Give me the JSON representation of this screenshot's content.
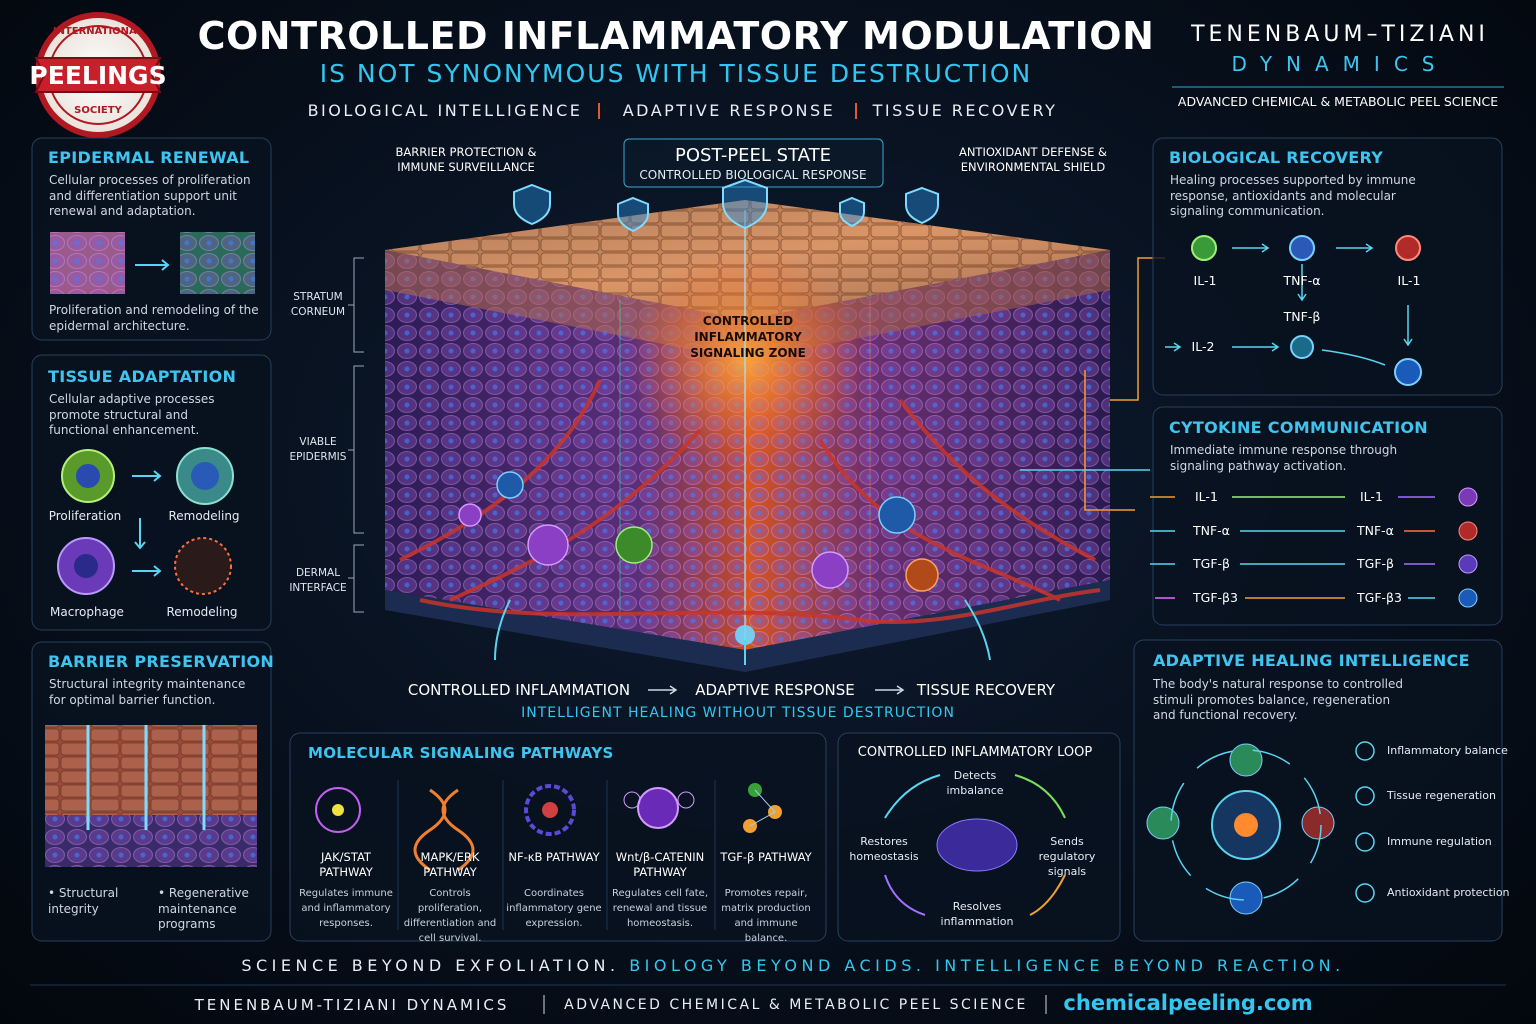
{
  "header": {
    "logo": {
      "top": "INTERNATIONAL",
      "main": "PEELINGS",
      "bottom": "SOCIETY"
    },
    "title": "CONTROLLED INFLAMMATORY MODULATION",
    "subtitle": "IS NOT SYNONYMOUS WITH TISSUE DESTRUCTION",
    "tagline": [
      "BIOLOGICAL INTELLIGENCE",
      "ADAPTIVE RESPONSE",
      "TISSUE RECOVERY"
    ],
    "brand": {
      "name": "TENENBAUM–TIZIANI",
      "sub": "DYNAMICS",
      "tagline": "ADVANCED CHEMICAL & METABOLIC PEEL SCIENCE"
    }
  },
  "left": {
    "epidermal_renewal": {
      "title": "EPIDERMAL RENEWAL",
      "text": "Cellular processes of proliferation and differentiation support unit renewal and adaptation.",
      "caption": "Proliferation and remodeling of the epidermal architecture."
    },
    "tissue_adaptation": {
      "title": "TISSUE ADAPTATION",
      "text": "Cellular adaptive processes promote structural and functional enhancement.",
      "labels": [
        "Proliferation",
        "Remodeling",
        "Macrophage",
        "Remodeling"
      ]
    },
    "barrier_preservation": {
      "title": "BARRIER PRESERVATION",
      "text": "Structural integrity maintenance for optimal barrier function.",
      "bullets": [
        "Structural integrity",
        "Regenerative maintenance programs"
      ]
    }
  },
  "center": {
    "top_left": "BARRIER PROTECTION & IMMUNE SURVEILLANCE",
    "state_title": "POST-PEEL STATE",
    "state_sub": "CONTROLLED BIOLOGICAL RESPONSE",
    "top_right": "ANTIOXIDANT DEFENSE & ENVIRONMENTAL SHIELD",
    "layers": [
      "STRATUM CORNEUM",
      "VIABLE EPIDERMIS",
      "DERMAL INTERFACE"
    ],
    "zone": "CONTROLLED INFLAMMATORY SIGNALING ZONE",
    "flow": [
      "CONTROLLED INFLAMMATION",
      "ADAPTIVE RESPONSE",
      "TISSUE RECOVERY"
    ],
    "flow_caption": "INTELLIGENT HEALING WITHOUT TISSUE DESTRUCTION"
  },
  "right": {
    "biological_recovery": {
      "title": "BIOLOGICAL RECOVERY",
      "text": "Healing processes supported by immune response, antioxidants and molecular signaling communication.",
      "nodes": [
        "IL-1",
        "TNF-α",
        "IL-1",
        "TNF-β",
        "IL-2"
      ]
    },
    "cytokine_communication": {
      "title": "CYTOKINE COMMUNICATION",
      "text": "Immediate immune response through signaling pathway activation.",
      "rows": [
        [
          "IL-1",
          "IL-1"
        ],
        [
          "TNF-α",
          "TNF-α"
        ],
        [
          "TGF-β",
          "TGF-β"
        ],
        [
          "TGF-β3",
          "TGF-β3"
        ]
      ]
    },
    "adaptive_healing": {
      "title": "ADAPTIVE HEALING INTELLIGENCE",
      "text": "The body's natural response to controlled stimuli promotes balance, regeneration and functional recovery.",
      "items": [
        "Inflammatory balance",
        "Tissue regeneration",
        "Immune regulation",
        "Antioxidant protection"
      ]
    }
  },
  "bottom": {
    "pathways": {
      "title": "MOLECULAR SIGNALING PATHWAYS",
      "items": [
        {
          "name": "JAK/STAT PATHWAY",
          "desc": "Regulates immune and inflammatory responses."
        },
        {
          "name": "MAPK/ERK PATHWAY",
          "desc": "Controls proliferation, differentiation and cell survival."
        },
        {
          "name": "NF-κB PATHWAY",
          "desc": "Coordinates inflammatory gene expression."
        },
        {
          "name": "Wnt/β-CATENIN PATHWAY",
          "desc": "Regulates cell fate, renewal and tissue homeostasis."
        },
        {
          "name": "TGF-β PATHWAY",
          "desc": "Promotes repair, matrix production and immune balance."
        }
      ]
    },
    "loop": {
      "title": "CONTROLLED INFLAMMATORY LOOP",
      "steps": [
        "Detects imbalance",
        "Sends regulatory signals",
        "Resolves inflammation",
        "Restores homeostasis"
      ]
    }
  },
  "footer": {
    "slogan": [
      "SCIENCE BEYOND EXFOLIATION.",
      "BIOLOGY BEYOND ACIDS.",
      "INTELLIGENCE BEYOND REACTION."
    ],
    "line": [
      "TENENBAUM-TIZIANI DYNAMICS",
      "ADVANCED CHEMICAL & METABOLIC PEEL SCIENCE",
      "chemicalpeeling.com"
    ]
  }
}
